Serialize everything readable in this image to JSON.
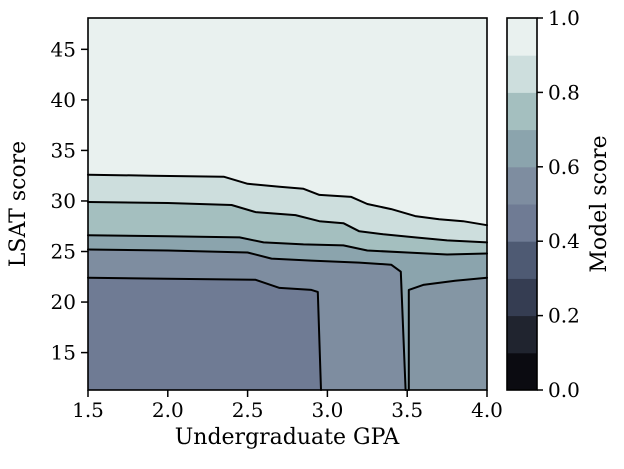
{
  "figure": {
    "background": "#ffffff"
  },
  "chart_data": {
    "type": "contour",
    "title": "",
    "xlabel": "Undergraduate GPA",
    "ylabel": "LSAT score",
    "colorbar_label": "Model score",
    "xlim": [
      1.5,
      4.0
    ],
    "ylim": [
      11.3,
      48.1
    ],
    "x_ticks": [
      1.5,
      2.0,
      2.5,
      3.0,
      3.5,
      4.0
    ],
    "x_tick_labels": [
      "1.5",
      "2.0",
      "2.5",
      "3.0",
      "3.5",
      "4.0"
    ],
    "y_ticks": [
      15,
      20,
      25,
      30,
      35,
      40,
      45
    ],
    "y_tick_labels": [
      "15",
      "20",
      "25",
      "30",
      "35",
      "40",
      "45"
    ],
    "colorbar_ticks": [
      0.0,
      0.2,
      0.4,
      0.6,
      0.8,
      1.0
    ],
    "colorbar_tick_labels": [
      "0.0",
      "0.2",
      "0.4",
      "0.6",
      "0.8",
      "1.0"
    ],
    "colorbar_range": [
      0.0,
      1.0
    ],
    "colorbar_colors_low_to_high": [
      "#0b0b11",
      "#20242f",
      "#353d52",
      "#4e5a73",
      "#6f7b94",
      "#7e8da0",
      "#8ba4ad",
      "#a4bfbf",
      "#cddedd",
      "#e9f1ef"
    ],
    "background_level_fill": "#e9f1ef",
    "grid": false,
    "legend": "colorbar-right",
    "contours": [
      {
        "level": 0.9,
        "fill_below": "#cddedd",
        "points": [
          [
            1.5,
            32.6
          ],
          [
            1.9,
            32.5
          ],
          [
            2.35,
            32.4
          ],
          [
            2.5,
            31.7
          ],
          [
            2.7,
            31.4
          ],
          [
            2.85,
            31.2
          ],
          [
            2.95,
            30.6
          ],
          [
            3.15,
            30.4
          ],
          [
            3.25,
            29.7
          ],
          [
            3.4,
            29.2
          ],
          [
            3.55,
            28.5
          ],
          [
            3.7,
            28.2
          ],
          [
            3.85,
            28.0
          ],
          [
            4.0,
            27.6
          ]
        ],
        "close": [
          [
            4.0,
            11.3
          ],
          [
            1.5,
            11.3
          ]
        ]
      },
      {
        "level": 0.8,
        "fill_below": "#a4bfbf",
        "points": [
          [
            1.5,
            29.9
          ],
          [
            2.0,
            29.8
          ],
          [
            2.4,
            29.6
          ],
          [
            2.55,
            28.9
          ],
          [
            2.8,
            28.6
          ],
          [
            2.95,
            28.0
          ],
          [
            3.1,
            27.8
          ],
          [
            3.2,
            27.0
          ],
          [
            3.35,
            26.7
          ],
          [
            3.55,
            26.4
          ],
          [
            3.75,
            26.1
          ],
          [
            4.0,
            25.9
          ]
        ],
        "close": [
          [
            4.0,
            11.3
          ],
          [
            1.5,
            11.3
          ]
        ]
      },
      {
        "level": 0.7,
        "fill_below": "#8ba4ad",
        "points": [
          [
            1.5,
            26.6
          ],
          [
            2.0,
            26.5
          ],
          [
            2.45,
            26.4
          ],
          [
            2.6,
            25.9
          ],
          [
            2.85,
            25.7
          ],
          [
            3.1,
            25.6
          ],
          [
            3.25,
            25.1
          ],
          [
            3.5,
            24.9
          ],
          [
            3.75,
            24.7
          ],
          [
            4.0,
            24.8
          ]
        ],
        "close": [
          [
            4.0,
            11.3
          ],
          [
            1.5,
            11.3
          ]
        ]
      },
      {
        "level": 0.6,
        "fill_below": "#7e8da0",
        "points": [
          [
            1.5,
            25.2
          ],
          [
            2.0,
            25.1
          ],
          [
            2.5,
            24.9
          ],
          [
            2.65,
            24.3
          ],
          [
            2.9,
            24.1
          ],
          [
            3.2,
            23.9
          ],
          [
            3.4,
            23.7
          ],
          [
            3.46,
            23.0
          ],
          [
            3.49,
            11.3
          ]
        ],
        "close": [
          [
            1.5,
            11.3
          ]
        ]
      },
      {
        "level": 0.6,
        "fill_below": "#8496a4",
        "points": [
          [
            3.51,
            11.3
          ],
          [
            3.51,
            21.2
          ],
          [
            3.6,
            21.7
          ],
          [
            3.8,
            22.1
          ],
          [
            4.0,
            22.4
          ]
        ],
        "close": [
          [
            4.0,
            11.3
          ]
        ]
      },
      {
        "level": 0.5,
        "fill_below": "#6f7b94",
        "points": [
          [
            1.5,
            22.4
          ],
          [
            2.0,
            22.3
          ],
          [
            2.55,
            22.2
          ],
          [
            2.7,
            21.4
          ],
          [
            2.9,
            21.2
          ],
          [
            2.94,
            21.0
          ],
          [
            2.96,
            11.3
          ]
        ],
        "close": [
          [
            1.5,
            11.3
          ]
        ]
      }
    ]
  }
}
